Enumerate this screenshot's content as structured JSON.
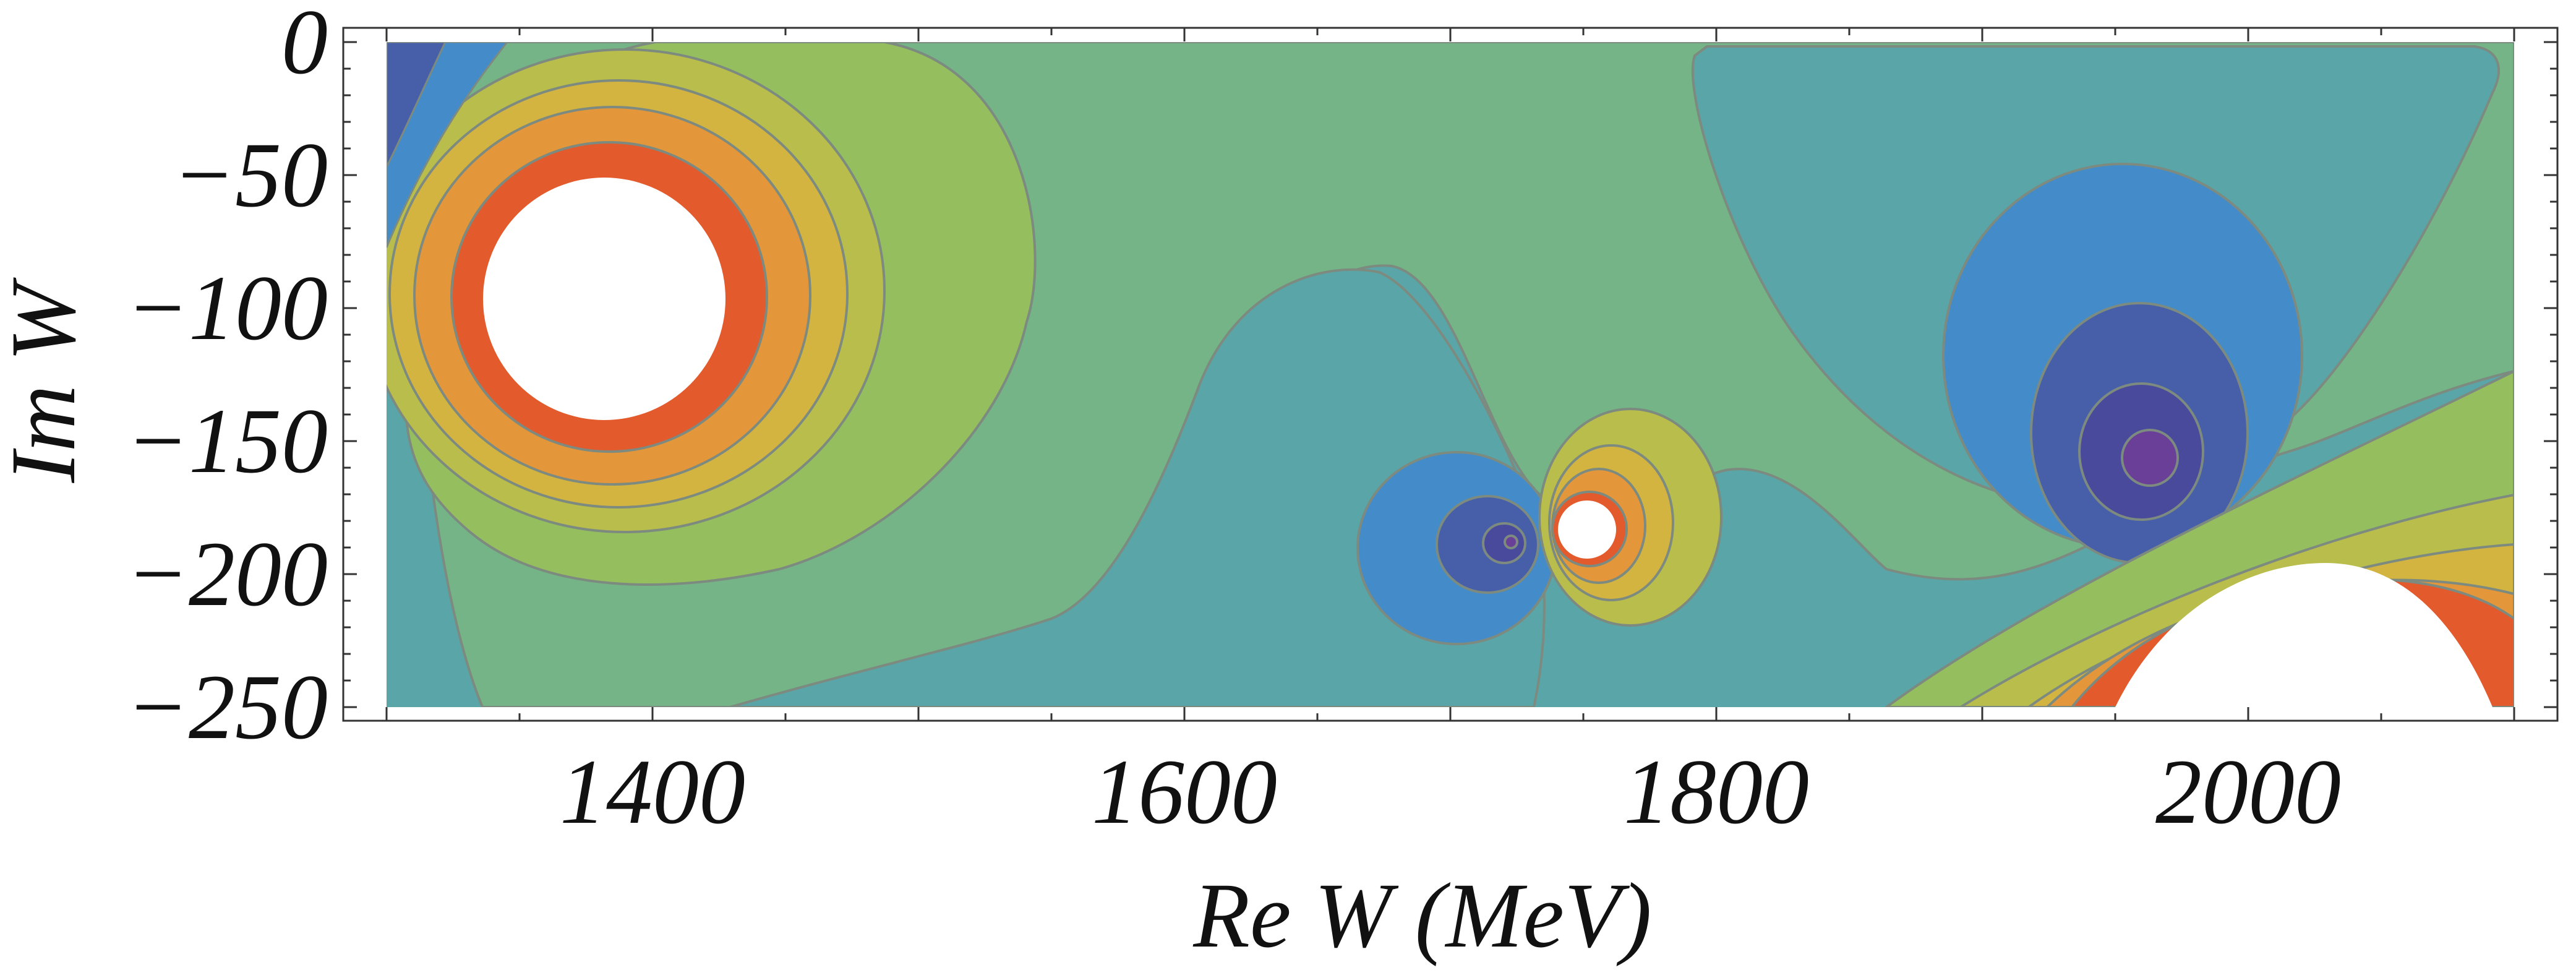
{
  "chart_data": {
    "type": "contour",
    "xlabel": "Re W (MeV)",
    "ylabel": "Im W",
    "xlim": [
      1300,
      2100
    ],
    "ylim": [
      -250,
      0
    ],
    "x_ticks": [
      1400,
      1600,
      1800,
      2000
    ],
    "y_ticks": [
      0,
      -50,
      -100,
      -150,
      -200,
      -250
    ],
    "grid": false,
    "legend": "none",
    "contour_line_color": "#7d8a7f",
    "regions": [
      {
        "name": "background-teal",
        "color": "#5aa5a8"
      },
      {
        "name": "middle-green-band",
        "color": "#74b487"
      },
      {
        "name": "light-green",
        "color": "#95bf5f"
      },
      {
        "name": "yellow-green",
        "color": "#b8bd4c"
      },
      {
        "name": "yellow",
        "color": "#d4b440"
      },
      {
        "name": "orange",
        "color": "#e3963a"
      },
      {
        "name": "red-orange",
        "color": "#e35a2c"
      },
      {
        "name": "blue",
        "color": "#448cc9"
      },
      {
        "name": "dark-blue",
        "color": "#475fa8"
      },
      {
        "name": "indigo",
        "color": "#4a4a9d"
      },
      {
        "name": "purple",
        "color": "#6a3f98"
      }
    ],
    "features": [
      {
        "kind": "pole",
        "re_w": 1380,
        "im_w": -98,
        "radius_mev": 45
      },
      {
        "kind": "pole",
        "re_w": 1750,
        "im_w": -184,
        "radius_mev": 11
      },
      {
        "kind": "pole",
        "re_w": 2013,
        "im_w": -250,
        "radius_mev": 58
      },
      {
        "kind": "zero",
        "re_w": 1718,
        "im_w": -189
      },
      {
        "kind": "zero",
        "re_w": 1965,
        "im_w": -157
      }
    ]
  }
}
